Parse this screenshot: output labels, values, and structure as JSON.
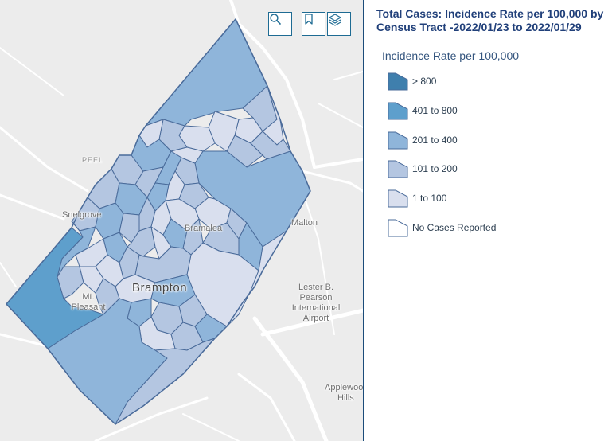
{
  "map": {
    "place_labels": {
      "peel": "PEEL",
      "snelgrove": "Snelgrove",
      "bramalea": "Bramalea",
      "malton": "Malton",
      "brampton": "Brampton",
      "mt_pleasant_line1": "Mt.",
      "mt_pleasant_line2": "Pleasant",
      "airport_line1": "Lester B.",
      "airport_line2": "Pearson",
      "airport_line3": "International",
      "airport_line4": "Airport",
      "applewood_line1": "Applewoo",
      "applewood_line2": "Hills"
    },
    "toolbar": {
      "search_icon": "search-icon",
      "bookmark_icon": "bookmark-icon",
      "layers_icon": "layers-icon"
    }
  },
  "legend": {
    "title": "Total Cases: Incidence Rate per 100,000 by Census Tract -2022/01/23 to 2022/01/29",
    "subtitle": "Incidence Rate per 100,000",
    "classes": [
      {
        "label": "> 800",
        "color": "#3f7fad"
      },
      {
        "label": "401 to 800",
        "color": "#5e9fcc"
      },
      {
        "label": "201 to 400",
        "color": "#8fb5da"
      },
      {
        "label": "101 to 200",
        "color": "#b4c6e1"
      },
      {
        "label": "1 to 100",
        "color": "#d9dfee"
      },
      {
        "label": "No Cases Reported",
        "color": "#ffffff"
      }
    ]
  },
  "colors": {
    "tract_border": "#4a6b9a",
    "title": "#21407a"
  }
}
